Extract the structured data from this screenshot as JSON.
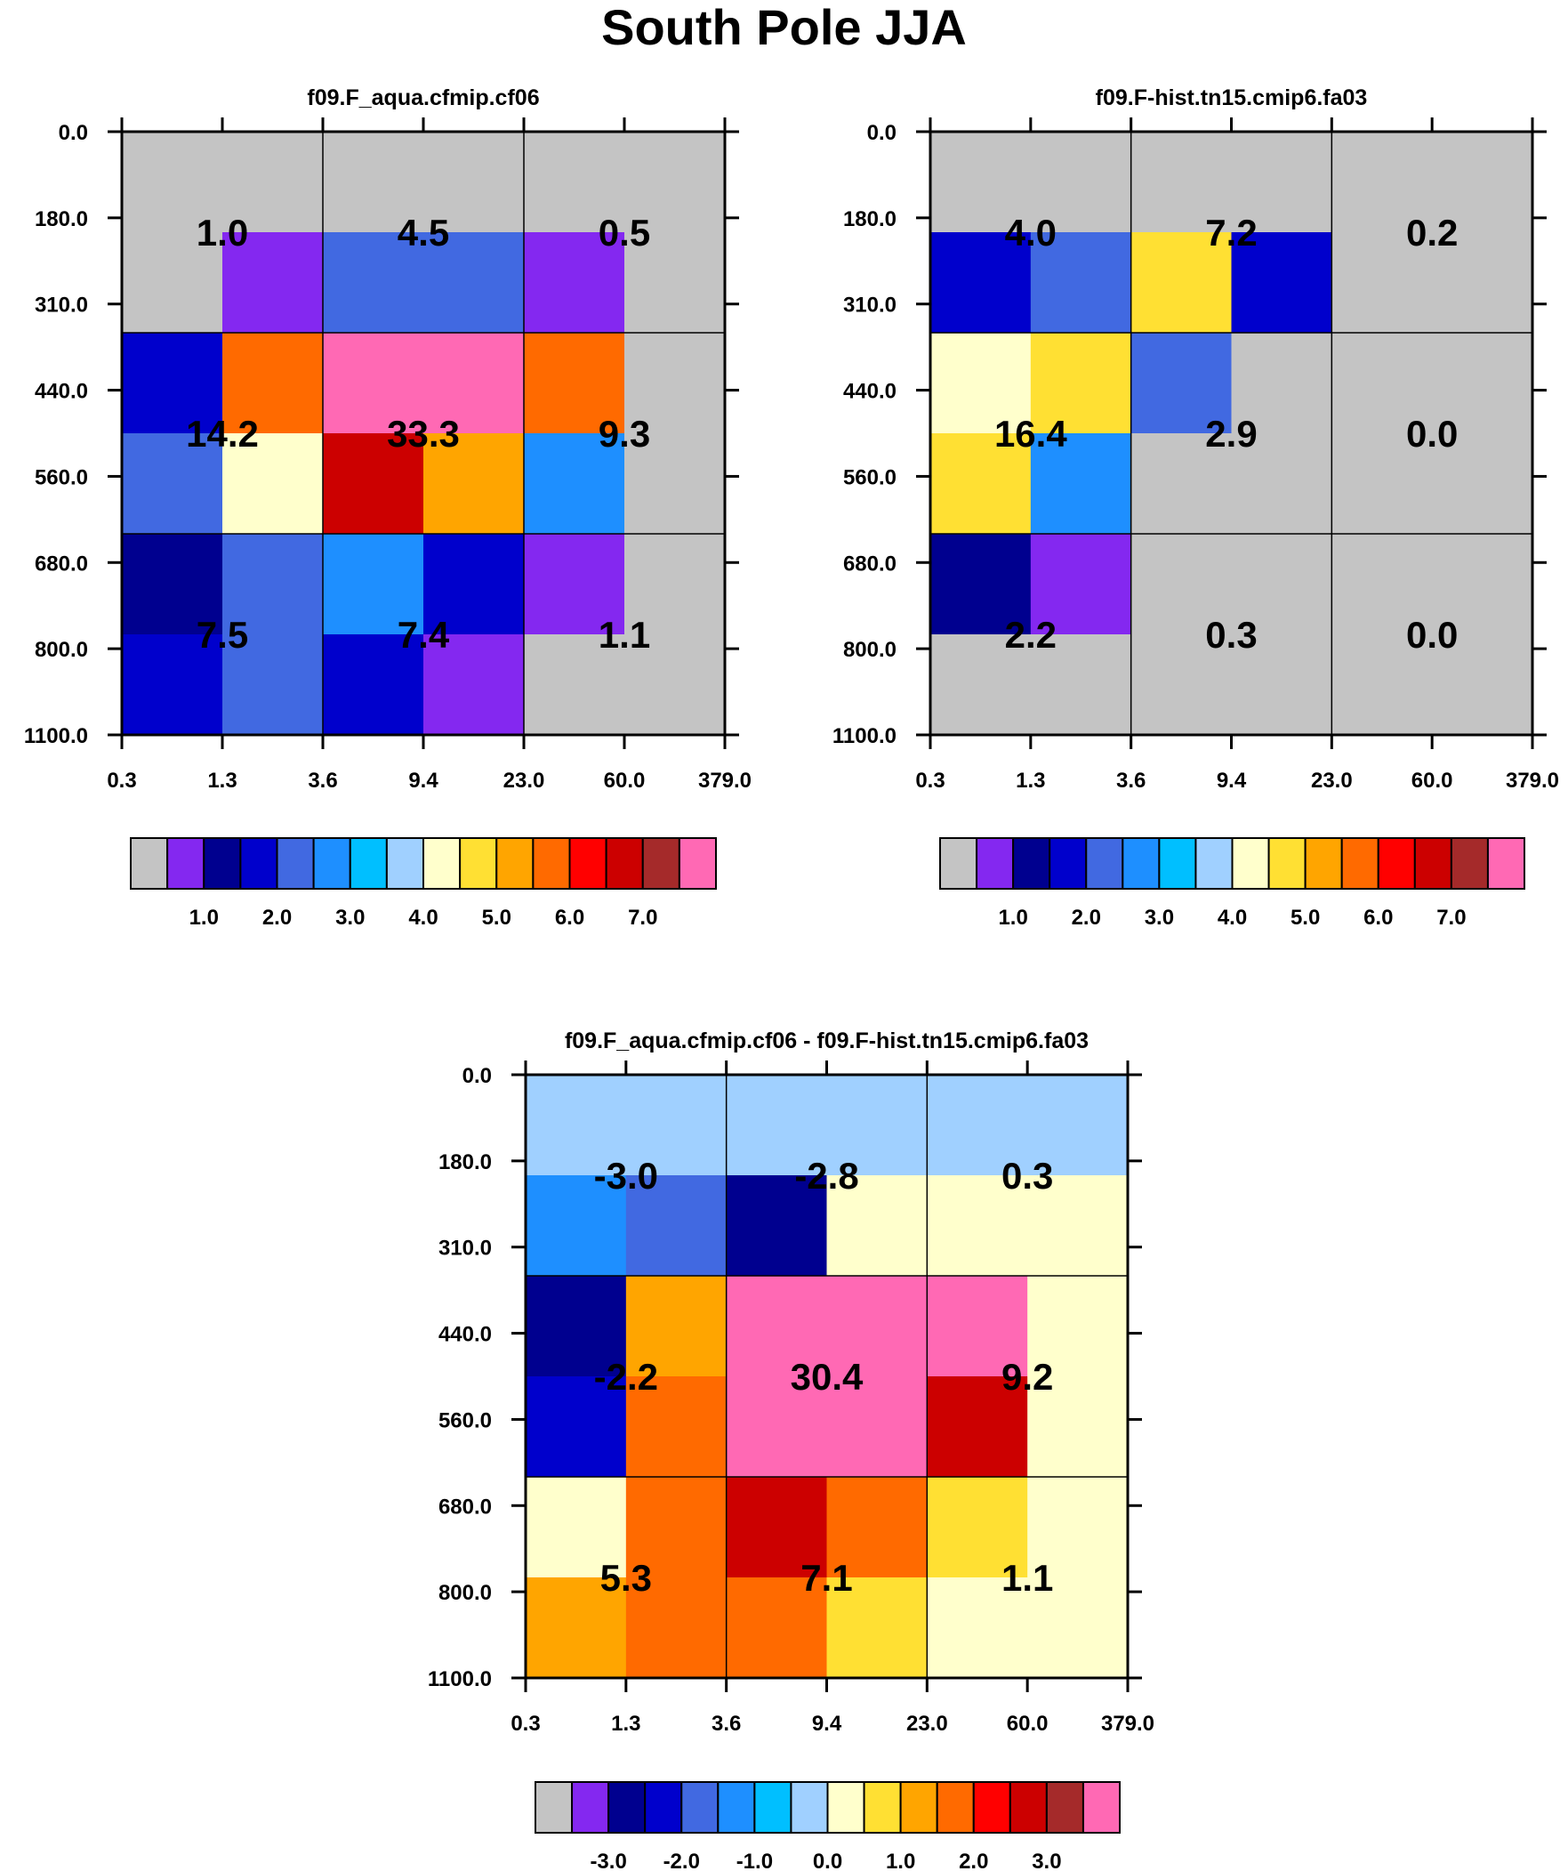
{
  "title": "South Pole JJA",
  "palette": [
    "#c4c4c4",
    "#8428f0",
    "#00008f",
    "#0000cc",
    "#4169e1",
    "#1e8fff",
    "#00bfff",
    "#a0d0ff",
    "#ffffcc",
    "#ffe033",
    "#ffa500",
    "#ff6a00",
    "#ff0000",
    "#cc0000",
    "#a52a2a",
    "#ff69b4"
  ],
  "chart_data": [
    {
      "type": "heatmap",
      "title": "f09.F_aqua.cfmip.cf06",
      "xlabel": "",
      "ylabel": "",
      "x_ticks": [
        "0.3",
        "1.3",
        "3.6",
        "9.4",
        "23.0",
        "60.0",
        "379.0"
      ],
      "y_ticks": [
        "0.0",
        "180.0",
        "310.0",
        "440.0",
        "560.0",
        "680.0",
        "800.0",
        "1100.0"
      ],
      "cells": [
        [
          0,
          0,
          0,
          0,
          0,
          0
        ],
        [
          0,
          1,
          4,
          4,
          1,
          0
        ],
        [
          3,
          11,
          15,
          15,
          11,
          0
        ],
        [
          4,
          8,
          13,
          10,
          5,
          0
        ],
        [
          2,
          4,
          5,
          3,
          1,
          0
        ],
        [
          3,
          4,
          3,
          1,
          0,
          0
        ]
      ],
      "annotations": [
        {
          "col": 0,
          "row": 0,
          "text": "1.0"
        },
        {
          "col": 1,
          "row": 0,
          "text": "4.5"
        },
        {
          "col": 2,
          "row": 0,
          "text": "0.5"
        },
        {
          "col": 0,
          "row": 1,
          "text": "14.2"
        },
        {
          "col": 1,
          "row": 1,
          "text": "33.3"
        },
        {
          "col": 2,
          "row": 1,
          "text": "9.3"
        },
        {
          "col": 0,
          "row": 2,
          "text": "7.5"
        },
        {
          "col": 1,
          "row": 2,
          "text": "7.4"
        },
        {
          "col": 2,
          "row": 2,
          "text": "1.1"
        }
      ],
      "colorbar_labels": [
        "1.0",
        "2.0",
        "3.0",
        "4.0",
        "5.0",
        "6.0",
        "7.0"
      ]
    },
    {
      "type": "heatmap",
      "title": "f09.F-hist.tn15.cmip6.fa03",
      "xlabel": "",
      "ylabel": "",
      "x_ticks": [
        "0.3",
        "1.3",
        "3.6",
        "9.4",
        "23.0",
        "60.0",
        "379.0"
      ],
      "y_ticks": [
        "0.0",
        "180.0",
        "310.0",
        "440.0",
        "560.0",
        "680.0",
        "800.0",
        "1100.0"
      ],
      "cells": [
        [
          0,
          0,
          0,
          0,
          0,
          0
        ],
        [
          3,
          4,
          9,
          3,
          0,
          0
        ],
        [
          8,
          9,
          4,
          0,
          0,
          0
        ],
        [
          9,
          5,
          0,
          0,
          0,
          0
        ],
        [
          2,
          1,
          0,
          0,
          0,
          0
        ],
        [
          0,
          0,
          0,
          0,
          0,
          0
        ]
      ],
      "annotations": [
        {
          "col": 0,
          "row": 0,
          "text": "4.0"
        },
        {
          "col": 1,
          "row": 0,
          "text": "7.2"
        },
        {
          "col": 2,
          "row": 0,
          "text": "0.2"
        },
        {
          "col": 0,
          "row": 1,
          "text": "16.4"
        },
        {
          "col": 1,
          "row": 1,
          "text": "2.9"
        },
        {
          "col": 2,
          "row": 1,
          "text": "0.0"
        },
        {
          "col": 0,
          "row": 2,
          "text": "2.2"
        },
        {
          "col": 1,
          "row": 2,
          "text": "0.3"
        },
        {
          "col": 2,
          "row": 2,
          "text": "0.0"
        }
      ],
      "colorbar_labels": [
        "1.0",
        "2.0",
        "3.0",
        "4.0",
        "5.0",
        "6.0",
        "7.0"
      ]
    },
    {
      "type": "heatmap",
      "title": "f09.F_aqua.cfmip.cf06 - f09.F-hist.tn15.cmip6.fa03",
      "xlabel": "",
      "ylabel": "",
      "x_ticks": [
        "0.3",
        "1.3",
        "3.6",
        "9.4",
        "23.0",
        "60.0",
        "379.0"
      ],
      "y_ticks": [
        "0.0",
        "180.0",
        "310.0",
        "440.0",
        "560.0",
        "680.0",
        "800.0",
        "1100.0"
      ],
      "cells": [
        [
          7,
          7,
          7,
          7,
          7,
          7
        ],
        [
          5,
          4,
          2,
          8,
          8,
          8
        ],
        [
          2,
          10,
          15,
          15,
          15,
          8
        ],
        [
          3,
          11,
          15,
          15,
          13,
          8
        ],
        [
          8,
          11,
          13,
          11,
          9,
          8
        ],
        [
          10,
          11,
          11,
          9,
          8,
          8
        ]
      ],
      "annotations": [
        {
          "col": 0,
          "row": 0,
          "text": "-3.0"
        },
        {
          "col": 1,
          "row": 0,
          "text": "-2.8"
        },
        {
          "col": 2,
          "row": 0,
          "text": "0.3"
        },
        {
          "col": 0,
          "row": 1,
          "text": "-2.2"
        },
        {
          "col": 1,
          "row": 1,
          "text": "30.4"
        },
        {
          "col": 2,
          "row": 1,
          "text": "9.2"
        },
        {
          "col": 0,
          "row": 2,
          "text": "5.3"
        },
        {
          "col": 1,
          "row": 2,
          "text": "7.1"
        },
        {
          "col": 2,
          "row": 2,
          "text": "1.1"
        }
      ],
      "colorbar_labels": [
        "-3.0",
        "-2.0",
        "-1.0",
        "0.0",
        "1.0",
        "2.0",
        "3.0"
      ]
    }
  ]
}
